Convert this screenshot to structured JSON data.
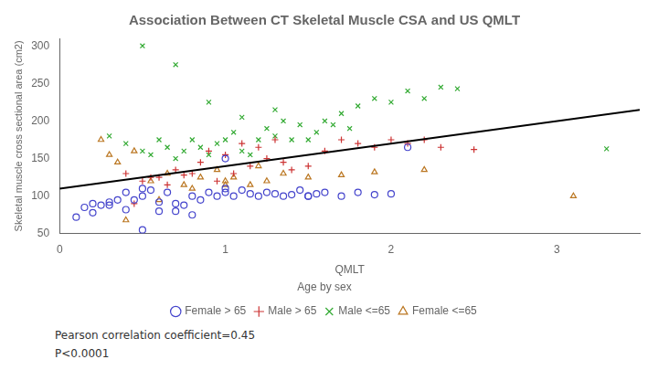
{
  "chart_data": {
    "type": "scatter",
    "title": "Association Between CT Skeletal Muscle CSA and US QMLT",
    "xlabel": "QMLT",
    "ylabel": "Skeletal muscle cross sectional area (cm2)",
    "xlim": [
      0,
      3.5
    ],
    "ylim": [
      50,
      310
    ],
    "xticks": [
      0,
      1,
      2,
      3
    ],
    "yticks": [
      50,
      100,
      150,
      200,
      250,
      300
    ],
    "grid": false,
    "legend": "bottom",
    "legend_title": "Age by sex",
    "annotations": [
      "Pearson correlation coefficient=0.45",
      "P<0.0001"
    ],
    "series": [
      {
        "name": "Female > 65",
        "marker": "o",
        "color": "#4444cc",
        "x": [
          0.1,
          0.2,
          0.25,
          0.3,
          0.35,
          0.4,
          0.45,
          0.5,
          0.5,
          0.55,
          0.6,
          0.65,
          0.7,
          0.7,
          0.75,
          0.8,
          0.85,
          0.9,
          0.95,
          1.0,
          1.0,
          1.05,
          1.1,
          1.15,
          1.2,
          1.25,
          1.3,
          1.35,
          1.4,
          1.45,
          1.5,
          1.55,
          1.6,
          1.7,
          1.8,
          1.9,
          2.0,
          2.1,
          0.15,
          0.2,
          0.3,
          0.4,
          0.5,
          0.6,
          0.8,
          1.0,
          1.5
        ],
        "y": [
          72,
          90,
          88,
          92,
          95,
          105,
          95,
          100,
          110,
          108,
          92,
          105,
          80,
          90,
          88,
          100,
          95,
          105,
          100,
          110,
          105,
          100,
          108,
          103,
          100,
          105,
          103,
          100,
          102,
          108,
          100,
          103,
          105,
          100,
          105,
          102,
          103,
          165,
          85,
          78,
          88,
          82,
          55,
          80,
          75,
          150,
          100
        ]
      },
      {
        "name": "Male > 65",
        "marker": "+",
        "color": "#cc3333",
        "x": [
          0.4,
          0.5,
          0.6,
          0.7,
          0.8,
          0.9,
          1.0,
          1.1,
          1.2,
          1.3,
          1.35,
          1.4,
          1.5,
          1.6,
          1.7,
          1.8,
          1.9,
          2.0,
          2.1,
          2.2,
          2.3,
          2.5,
          0.45,
          0.55,
          0.65,
          0.75,
          0.85,
          0.95,
          1.05,
          1.15,
          1.25
        ],
        "y": [
          130,
          120,
          125,
          135,
          130,
          160,
          155,
          170,
          165,
          175,
          145,
          135,
          140,
          160,
          175,
          170,
          165,
          175,
          170,
          175,
          165,
          162,
          90,
          125,
          115,
          128,
          145,
          120,
          130,
          140,
          150
        ]
      },
      {
        "name": "Male <=65",
        "marker": "x",
        "color": "#33aa33",
        "x": [
          0.3,
          0.4,
          0.5,
          0.55,
          0.6,
          0.65,
          0.7,
          0.75,
          0.8,
          0.85,
          0.9,
          0.95,
          1.0,
          1.05,
          1.1,
          1.15,
          1.2,
          1.25,
          1.3,
          1.35,
          1.4,
          1.45,
          1.5,
          1.55,
          1.6,
          1.65,
          1.7,
          1.75,
          1.8,
          1.9,
          2.0,
          2.1,
          2.2,
          2.3,
          2.4,
          0.5,
          0.7,
          0.9,
          1.1,
          1.3,
          3.3
        ],
        "y": [
          180,
          170,
          160,
          155,
          175,
          165,
          150,
          160,
          175,
          165,
          155,
          170,
          175,
          185,
          160,
          155,
          175,
          190,
          180,
          200,
          175,
          195,
          175,
          185,
          200,
          195,
          210,
          190,
          220,
          230,
          225,
          240,
          230,
          245,
          243,
          300,
          275,
          225,
          205,
          215,
          163
        ]
      },
      {
        "name": "Female <=65",
        "marker": "^",
        "color": "#bb7722",
        "x": [
          0.25,
          0.35,
          0.45,
          0.55,
          0.65,
          0.75,
          0.85,
          0.95,
          1.0,
          1.05,
          1.15,
          1.25,
          1.35,
          1.5,
          1.7,
          1.9,
          2.2,
          3.1,
          0.4,
          0.6,
          0.8,
          1.0,
          1.2,
          0.3
        ],
        "y": [
          175,
          145,
          160,
          120,
          130,
          115,
          125,
          135,
          115,
          125,
          115,
          120,
          130,
          125,
          128,
          132,
          135,
          100,
          68,
          95,
          110,
          120,
          140,
          155
        ]
      },
      {
        "type": "line",
        "color": "#000000",
        "x": [
          0,
          3.5
        ],
        "y": [
          110,
          215
        ]
      }
    ]
  }
}
